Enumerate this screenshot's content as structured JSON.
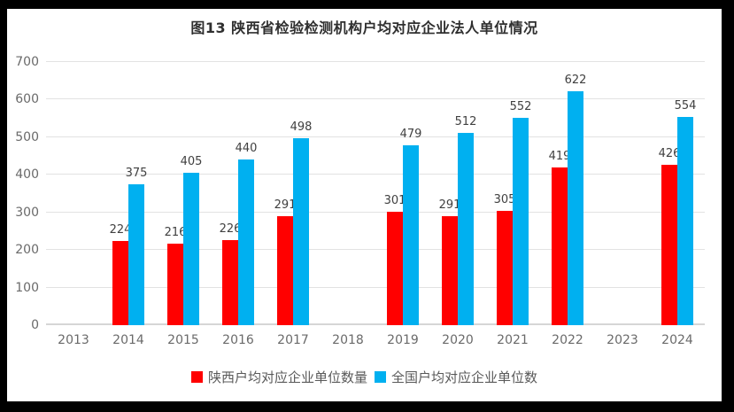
{
  "title": "图13  陕西省检验检测机构户均对应企业法人单位情况",
  "chart_data": {
    "type": "bar",
    "title": "图13  陕西省检验检测机构户均对应企业法人单位情况",
    "categories": [
      "2013",
      "2014",
      "2015",
      "2016",
      "2017",
      "2018",
      "2019",
      "2020",
      "2021",
      "2022",
      "2023",
      "2024"
    ],
    "series": [
      {
        "name": "陕西户均对应企业单位数量",
        "color": "#ff0000",
        "values": [
          null,
          224,
          216,
          226,
          291,
          null,
          301,
          291,
          305,
          419,
          null,
          426
        ]
      },
      {
        "name": "全国户均对应企业单位数",
        "color": "#00b0f0",
        "values": [
          null,
          375,
          405,
          440,
          498,
          null,
          479,
          512,
          552,
          622,
          null,
          554
        ]
      }
    ],
    "xlabel": "",
    "ylabel": "",
    "ylim": [
      0,
      700
    ],
    "yticks": [
      0,
      100,
      200,
      300,
      400,
      500,
      600,
      700
    ],
    "grid": "horizontal",
    "legend_position": "bottom",
    "data_labels": true
  },
  "colors": {
    "shaanxi_series": "#ff0000",
    "national_series": "#00b0f0",
    "gridline": "#e2e2e2",
    "axis_text": "#6a6a6a",
    "data_label_text": "#404040",
    "frame": "#000000",
    "background": "#ffffff"
  }
}
